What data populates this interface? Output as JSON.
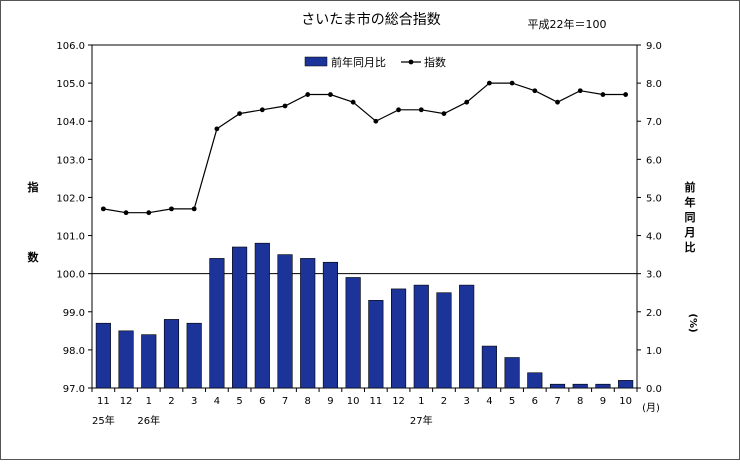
{
  "chart_data": {
    "type": "bar+line",
    "title": "さいたま市の総合指数",
    "note": "平成22年＝100",
    "categories": [
      "11",
      "12",
      "1",
      "2",
      "3",
      "4",
      "5",
      "6",
      "7",
      "8",
      "9",
      "10",
      "11",
      "12",
      "1",
      "2",
      "3",
      "4",
      "5",
      "6",
      "7",
      "8",
      "9",
      "10"
    ],
    "year_labels": [
      {
        "text": "25年",
        "index": 0
      },
      {
        "text": "26年",
        "index": 2
      },
      {
        "text": "27年",
        "index": 14
      }
    ],
    "x_unit": "(月)",
    "left_axis": {
      "label_chars": [
        "指",
        "数"
      ],
      "min": 97.0,
      "max": 106.0,
      "step": 1.0,
      "ticks": [
        "97.0",
        "98.0",
        "99.0",
        "100.0",
        "101.0",
        "102.0",
        "103.0",
        "104.0",
        "105.0",
        "106.0"
      ]
    },
    "right_axis": {
      "label_chars": [
        "前",
        "年",
        "同",
        "月",
        "比",
        "(%)"
      ],
      "min": 0.0,
      "max": 9.0,
      "step": 1.0,
      "ticks": [
        "0.0",
        "1.0",
        "2.0",
        "3.0",
        "4.0",
        "5.0",
        "6.0",
        "7.0",
        "8.0",
        "9.0"
      ]
    },
    "series": [
      {
        "name": "前年同月比",
        "type": "bar",
        "axis": "right",
        "color": "#1c3399",
        "values": [
          1.7,
          1.5,
          1.4,
          1.8,
          1.7,
          3.4,
          3.7,
          3.8,
          3.5,
          3.4,
          3.3,
          2.9,
          2.3,
          2.6,
          2.7,
          2.5,
          2.7,
          1.1,
          0.8,
          0.4,
          0.1,
          0.1,
          0.1,
          0.2
        ]
      },
      {
        "name": "指数",
        "type": "line",
        "axis": "left",
        "color": "#000000",
        "values": [
          101.7,
          101.6,
          101.6,
          101.7,
          101.7,
          103.8,
          104.2,
          104.3,
          104.4,
          104.7,
          104.7,
          104.5,
          104.0,
          104.3,
          104.3,
          104.2,
          104.5,
          105.0,
          105.0,
          104.8,
          104.5,
          104.8,
          104.7,
          104.7
        ]
      }
    ],
    "reference_line": 100.0,
    "legend_position": "top-center"
  }
}
